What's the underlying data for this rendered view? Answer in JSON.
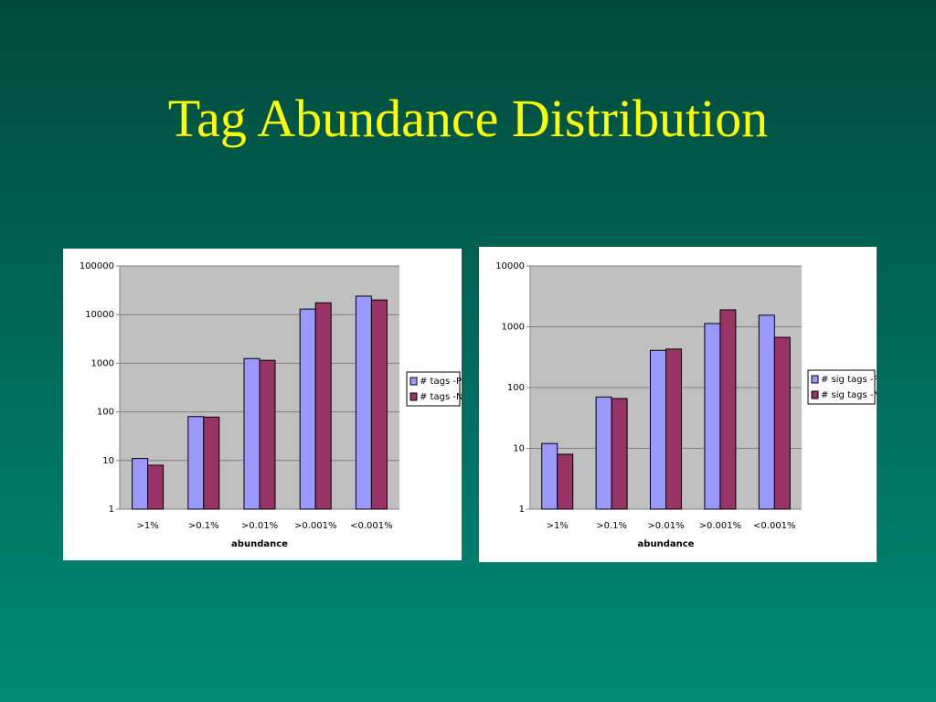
{
  "title": "Tag Abundance Distribution",
  "chart_data": [
    {
      "type": "bar",
      "yscale": "log",
      "grid": true,
      "legend": "right",
      "xlabel": "abundance",
      "categories": [
        ">1%",
        ">0.1%",
        ">0.01%",
        ">0.001%",
        "<0.001%"
      ],
      "series": [
        {
          "name": "# tags -P",
          "color": "#9999ff",
          "values": [
            11,
            80,
            1250,
            13000,
            24000
          ]
        },
        {
          "name": "# tags -N",
          "color": "#993366",
          "values": [
            8,
            78,
            1150,
            17500,
            20000
          ]
        }
      ],
      "ylim": [
        1,
        100000
      ],
      "yticks": [
        1,
        10,
        100,
        1000,
        10000,
        100000
      ]
    },
    {
      "type": "bar",
      "yscale": "log",
      "grid": true,
      "legend": "right",
      "xlabel": "abundance",
      "categories": [
        ">1%",
        ">0.1%",
        ">0.01%",
        ">0.001%",
        "<0.001%"
      ],
      "series": [
        {
          "name": "# sig tags -P",
          "color": "#9999ff",
          "values": [
            12,
            70,
            410,
            1130,
            1550
          ]
        },
        {
          "name": "# sig tags -N",
          "color": "#993366",
          "values": [
            8,
            66,
            430,
            1900,
            670
          ]
        }
      ],
      "ylim": [
        1,
        10000
      ],
      "yticks": [
        1,
        10,
        100,
        1000,
        10000
      ]
    }
  ]
}
